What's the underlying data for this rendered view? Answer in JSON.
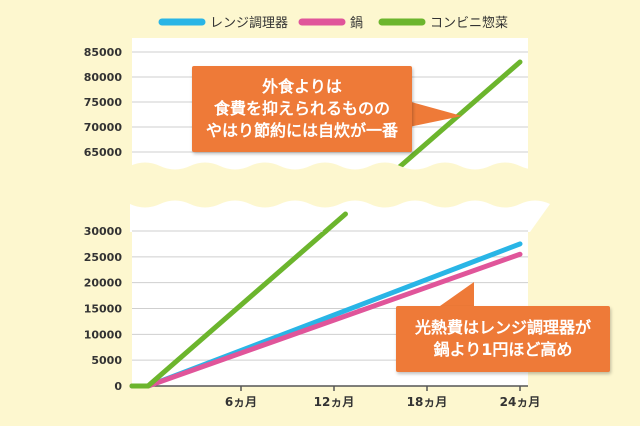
{
  "chart_data": {
    "type": "line",
    "x_ticks": [
      "6ヵ月",
      "12ヵ月",
      "18ヵ月",
      "24ヵ月"
    ],
    "y_ticks_lower": [
      0,
      5000,
      10000,
      15000,
      20000,
      25000,
      30000
    ],
    "y_ticks_upper": [
      65000,
      70000,
      75000,
      80000,
      85000
    ],
    "y_break": [
      30000,
      65000
    ],
    "xlim": [
      0,
      24
    ],
    "grid": true,
    "legend_position": "top",
    "series": [
      {
        "name": "レンジ調理器",
        "color": "#29b5e6",
        "points": [
          [
            0,
            0
          ],
          [
            24,
            27500
          ]
        ]
      },
      {
        "name": "鍋",
        "color": "#e0559a",
        "points": [
          [
            0,
            0
          ],
          [
            24,
            25500
          ]
        ]
      },
      {
        "name": "コンビニ惣菜",
        "color": "#6cb52d",
        "points": [
          [
            0,
            0
          ],
          [
            24,
            83000
          ]
        ]
      }
    ]
  },
  "annotations": [
    {
      "lines": [
        "外食よりは",
        "食費を抑えられるものの",
        "やはり節約には自炊が一番"
      ]
    },
    {
      "lines": [
        "光熱費はレンジ調理器が",
        "鍋より1円ほど高め"
      ]
    }
  ],
  "colors": {
    "background": "#fdf7cf",
    "plot_background": "#ffffff",
    "callout": "#ee7a38",
    "axis": "#555555",
    "grid": "#cfcfcf"
  }
}
